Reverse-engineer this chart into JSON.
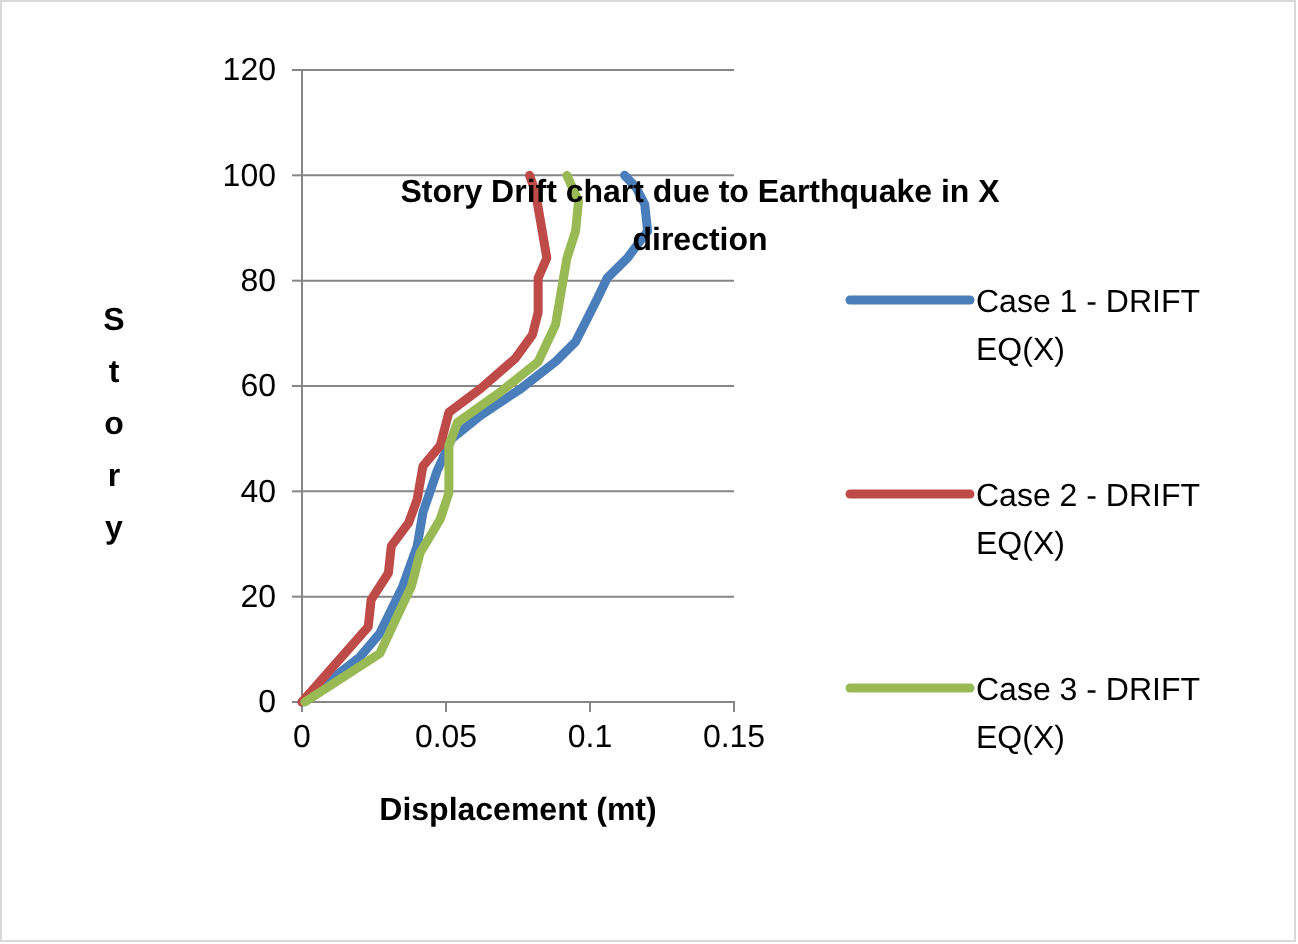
{
  "chart_data": {
    "type": "line",
    "title": "Story Drift chart due to Earthquake in X direction",
    "xlabel": "Displacement (mt)",
    "ylabel": "Story",
    "xlim": [
      0,
      0.15
    ],
    "xticks": [
      0,
      0.05,
      0.1,
      0.15
    ],
    "ylim": [
      0,
      120
    ],
    "yticks": [
      0,
      20,
      40,
      60,
      80,
      100,
      120
    ],
    "grid": "y",
    "legend": "right",
    "marker": "none",
    "series": [
      {
        "name": "Case 1 - DRIFT EQ(X)",
        "color": "#4a7ebb",
        "x": [
          0,
          0.02,
          0.027,
          0.035,
          0.04,
          0.042,
          0.047,
          0.052,
          0.062,
          0.076,
          0.088,
          0.095,
          0.102,
          0.106,
          0.113,
          0.12,
          0.119,
          0.116,
          0.112
        ],
        "values": [
          0,
          8.5,
          13,
          22,
          29.6,
          36,
          44,
          50,
          54.4,
          59.5,
          64.6,
          68.4,
          76,
          80.5,
          84.3,
          89.4,
          94.5,
          97.7,
          100
        ]
      },
      {
        "name": "Case 2 - DRIFT EQ(X)",
        "color": "#be4b48",
        "x": [
          0,
          0.023,
          0.024,
          0.03,
          0.031,
          0.037,
          0.04,
          0.042,
          0.048,
          0.051,
          0.062,
          0.074,
          0.08,
          0.082,
          0.082,
          0.085,
          0.083,
          0.081,
          0.079
        ],
        "values": [
          0,
          14.3,
          19.4,
          24.5,
          29.6,
          34,
          38.5,
          44.8,
          48.7,
          55,
          59.5,
          65.2,
          69.7,
          74,
          80.5,
          84.3,
          90.7,
          97,
          100
        ]
      },
      {
        "name": "Case 3 - DRIFT EQ(X)",
        "color": "#98b954",
        "x": [
          0.001,
          0.027,
          0.033,
          0.038,
          0.041,
          0.048,
          0.051,
          0.051,
          0.054,
          0.069,
          0.082,
          0.088,
          0.092,
          0.095,
          0.096,
          0.092
        ],
        "values": [
          0,
          9.2,
          16.2,
          22,
          28.3,
          34.7,
          39.7,
          48.7,
          53.1,
          58.9,
          64.6,
          71.6,
          84.3,
          89.4,
          95.1,
          100
        ]
      }
    ]
  }
}
